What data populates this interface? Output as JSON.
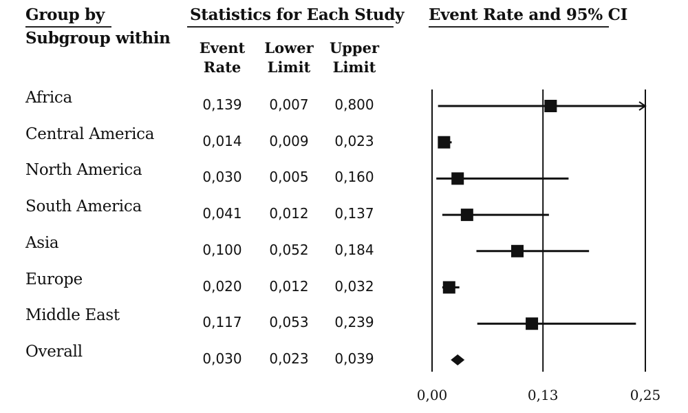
{
  "headers": {
    "group_line1": "Group by",
    "group_line2": "Subgroup within",
    "stats": "Statistics for Each Study",
    "plot": "Event Rate and 95% CI",
    "event_rate": [
      "Event",
      "Rate"
    ],
    "lower_limit": [
      "Lower",
      "Limit"
    ],
    "upper_limit": [
      "Upper",
      "Limit"
    ]
  },
  "rows": [
    {
      "label": "Africa",
      "event_rate": "0,139",
      "lower": "0,007",
      "upper": "0,800"
    },
    {
      "label": "Central America",
      "event_rate": "0,014",
      "lower": "0,009",
      "upper": "0,023"
    },
    {
      "label": "North America",
      "event_rate": "0,030",
      "lower": "0,005",
      "upper": "0,160"
    },
    {
      "label": "South America",
      "event_rate": "0,041",
      "lower": "0,012",
      "upper": "0,137"
    },
    {
      "label": "Asia",
      "event_rate": "0,100",
      "lower": "0,052",
      "upper": "0,184"
    },
    {
      "label": "Europe",
      "event_rate": "0,020",
      "lower": "0,012",
      "upper": "0,032"
    },
    {
      "label": "Middle East",
      "event_rate": "0,117",
      "lower": "0,053",
      "upper": "0,239"
    },
    {
      "label": "Overall",
      "event_rate": "0,030",
      "lower": "0,023",
      "upper": "0,039"
    }
  ],
  "chart_data": {
    "type": "forest",
    "title": "Event Rate and 95% CI",
    "xlim": [
      0,
      0.25
    ],
    "x_ticks": [
      0,
      0.13,
      0.25
    ],
    "x_tick_labels": [
      "0,00",
      "0,13",
      "0,25"
    ],
    "reference_line": 0.13,
    "series": [
      {
        "name": "Africa",
        "point": 0.139,
        "lower": 0.007,
        "upper": 0.8,
        "marker": "square"
      },
      {
        "name": "Central America",
        "point": 0.014,
        "lower": 0.009,
        "upper": 0.023,
        "marker": "square"
      },
      {
        "name": "North America",
        "point": 0.03,
        "lower": 0.005,
        "upper": 0.16,
        "marker": "square"
      },
      {
        "name": "South America",
        "point": 0.041,
        "lower": 0.012,
        "upper": 0.137,
        "marker": "square"
      },
      {
        "name": "Asia",
        "point": 0.1,
        "lower": 0.052,
        "upper": 0.184,
        "marker": "square"
      },
      {
        "name": "Europe",
        "point": 0.02,
        "lower": 0.012,
        "upper": 0.032,
        "marker": "square"
      },
      {
        "name": "Middle East",
        "point": 0.117,
        "lower": 0.053,
        "upper": 0.239,
        "marker": "square"
      },
      {
        "name": "Overall",
        "point": 0.03,
        "lower": 0.023,
        "upper": 0.039,
        "marker": "diamond"
      }
    ],
    "colors": {
      "marks": "#111111"
    }
  }
}
